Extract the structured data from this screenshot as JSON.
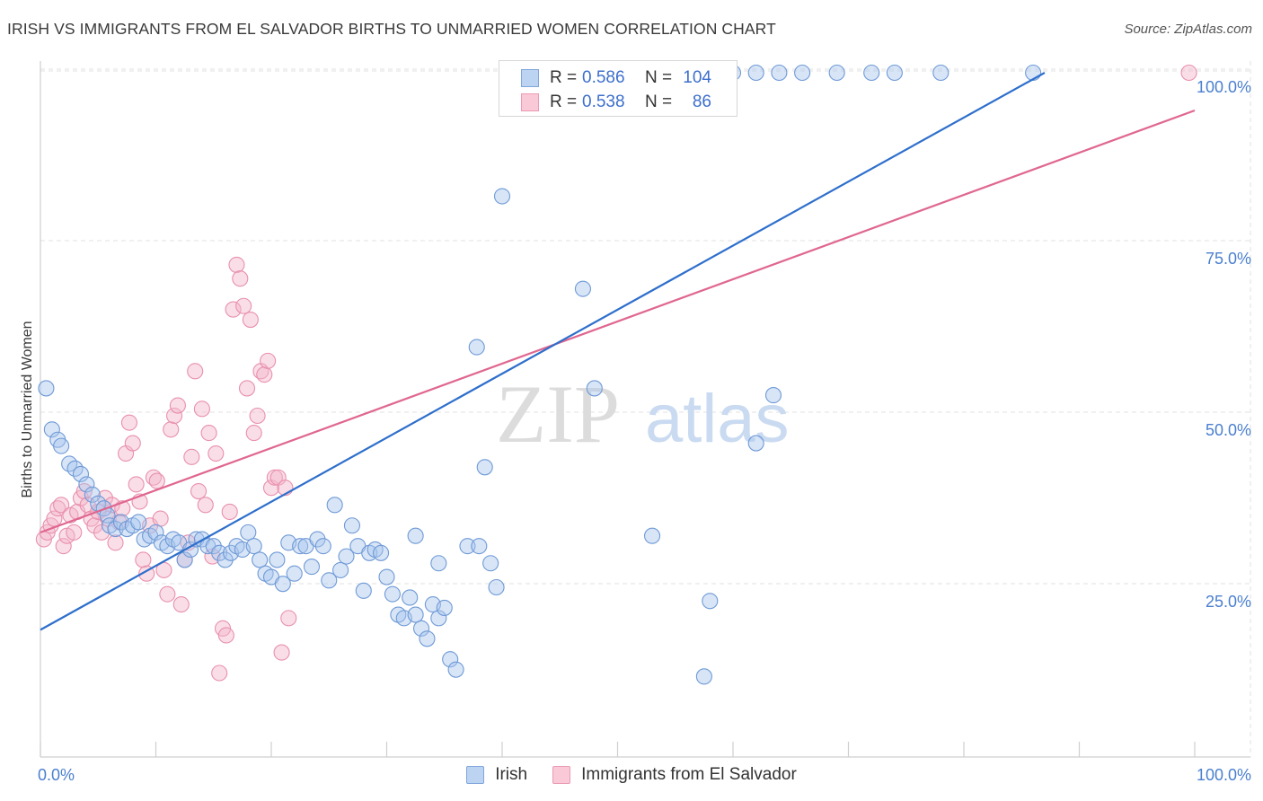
{
  "title": "IRISH VS IMMIGRANTS FROM EL SALVADOR BIRTHS TO UNMARRIED WOMEN CORRELATION CHART",
  "source": "Source: ZipAtlas.com",
  "watermark": {
    "zip": "ZIP",
    "atlas": "atlas"
  },
  "legend": {
    "irish": {
      "r_label": "R =",
      "r_value": "0.586",
      "n_label": "N =",
      "n_value": "104"
    },
    "salvador": {
      "r_label": "R =",
      "r_value": "0.538",
      "n_label": "N =",
      "n_value": "86"
    }
  },
  "bottom_legend": {
    "irish": "Irish",
    "salvador": "Immigrants from El Salvador"
  },
  "chart_data": {
    "type": "scatter",
    "title": "IRISH VS IMMIGRANTS FROM EL SALVADOR BIRTHS TO UNMARRIED WOMEN CORRELATION CHART",
    "xlabel": "",
    "ylabel": "Births to Unmarried Women",
    "xlim": [
      0,
      100
    ],
    "ylim": [
      0,
      105
    ],
    "x_tick_labels": [
      "0.0%",
      "100.0%"
    ],
    "y_tick_labels": [
      "25.0%",
      "50.0%",
      "75.0%",
      "100.0%"
    ],
    "y_ticks": [
      25,
      50,
      75,
      100
    ],
    "grid": true,
    "legend_position": "top-center",
    "colors": {
      "irish": "#a9c6ee",
      "irish_line": "#2e6fcc",
      "salvador": "#f5b6c9",
      "salvador_line": "#e0678f",
      "tick_text": "#4a7fcf"
    },
    "series": [
      {
        "name": "Irish",
        "trendline": {
          "x": [
            0,
            87
          ],
          "y": [
            18.8,
            100
          ]
        },
        "points": [
          [
            0.5,
            54
          ],
          [
            1,
            48
          ],
          [
            1.5,
            46.5
          ],
          [
            1.8,
            45.6
          ],
          [
            2.5,
            43
          ],
          [
            3,
            42.3
          ],
          [
            3.5,
            41.5
          ],
          [
            4,
            40
          ],
          [
            4.5,
            38.5
          ],
          [
            5,
            37.2
          ],
          [
            5.5,
            36.5
          ],
          [
            5.8,
            35.5
          ],
          [
            6,
            34
          ],
          [
            6.5,
            33.5
          ],
          [
            7,
            34.5
          ],
          [
            7.5,
            33.5
          ],
          [
            8,
            34
          ],
          [
            8.5,
            34.5
          ],
          [
            9,
            32
          ],
          [
            9.5,
            32.5
          ],
          [
            10,
            33
          ],
          [
            10.5,
            31.5
          ],
          [
            11,
            31
          ],
          [
            11.5,
            32
          ],
          [
            12,
            31.5
          ],
          [
            12.5,
            29
          ],
          [
            13,
            30.5
          ],
          [
            13.5,
            32
          ],
          [
            14,
            32
          ],
          [
            14.5,
            31
          ],
          [
            15,
            31
          ],
          [
            15.5,
            30
          ],
          [
            16,
            29
          ],
          [
            16.5,
            30
          ],
          [
            17,
            31
          ],
          [
            17.5,
            30.5
          ],
          [
            18,
            33
          ],
          [
            18.5,
            31
          ],
          [
            19,
            29
          ],
          [
            19.5,
            27
          ],
          [
            20,
            26.5
          ],
          [
            20.5,
            29
          ],
          [
            21,
            25.5
          ],
          [
            21.5,
            31.5
          ],
          [
            22,
            27
          ],
          [
            22.5,
            31
          ],
          [
            23,
            31
          ],
          [
            23.5,
            28
          ],
          [
            24,
            32
          ],
          [
            24.5,
            31
          ],
          [
            25,
            26
          ],
          [
            25.5,
            37
          ],
          [
            26,
            27.5
          ],
          [
            26.5,
            29.5
          ],
          [
            27,
            34
          ],
          [
            27.5,
            31
          ],
          [
            28,
            24.5
          ],
          [
            28.5,
            30
          ],
          [
            29,
            30.5
          ],
          [
            29.5,
            30
          ],
          [
            30,
            26.5
          ],
          [
            30.5,
            24
          ],
          [
            31,
            21
          ],
          [
            31.5,
            20.5
          ],
          [
            32,
            23.5
          ],
          [
            32.5,
            21
          ],
          [
            33,
            19
          ],
          [
            33.5,
            17.5
          ],
          [
            34,
            22.5
          ],
          [
            34.5,
            20.5
          ],
          [
            35,
            22
          ],
          [
            35.5,
            14.5
          ],
          [
            36,
            13
          ],
          [
            37,
            31
          ],
          [
            38,
            31
          ],
          [
            39,
            28.5
          ],
          [
            39.5,
            25
          ],
          [
            32.5,
            32.5
          ],
          [
            34.5,
            28.5
          ],
          [
            40,
            82
          ],
          [
            41,
            100
          ],
          [
            42.5,
            100
          ],
          [
            44.5,
            100
          ],
          [
            46,
            100
          ],
          [
            47,
            68.5
          ],
          [
            48,
            54
          ],
          [
            49,
            100
          ],
          [
            51,
            100
          ],
          [
            55,
            100
          ],
          [
            58,
            100
          ],
          [
            60,
            100
          ],
          [
            62,
            100
          ],
          [
            64,
            100
          ],
          [
            66,
            100
          ],
          [
            69,
            100
          ],
          [
            72,
            100
          ],
          [
            74,
            100
          ],
          [
            78,
            100
          ],
          [
            86,
            100
          ],
          [
            53,
            32.5
          ],
          [
            38.5,
            42.5
          ],
          [
            58,
            23
          ],
          [
            62,
            46
          ],
          [
            63.5,
            53
          ],
          [
            57.5,
            12
          ],
          [
            37.8,
            60
          ]
        ]
      },
      {
        "name": "Immigrants from El Salvador",
        "trendline": {
          "x": [
            0,
            100
          ],
          "y": [
            33,
            94.5
          ]
        },
        "points": [
          [
            0.3,
            32
          ],
          [
            0.6,
            33
          ],
          [
            0.9,
            34
          ],
          [
            1.2,
            35
          ],
          [
            1.5,
            36.5
          ],
          [
            1.8,
            37
          ],
          [
            2,
            31
          ],
          [
            2.3,
            32.5
          ],
          [
            2.6,
            35.5
          ],
          [
            2.9,
            33
          ],
          [
            3.2,
            36
          ],
          [
            3.5,
            38
          ],
          [
            3.8,
            39
          ],
          [
            4.1,
            37
          ],
          [
            4.4,
            35
          ],
          [
            4.7,
            34
          ],
          [
            5,
            36
          ],
          [
            5.3,
            33
          ],
          [
            5.6,
            38
          ],
          [
            5.9,
            35
          ],
          [
            6.2,
            37
          ],
          [
            6.5,
            31.5
          ],
          [
            6.8,
            34.5
          ],
          [
            7.1,
            36.5
          ],
          [
            7.4,
            44.5
          ],
          [
            7.7,
            49
          ],
          [
            8,
            46
          ],
          [
            8.3,
            40
          ],
          [
            8.6,
            37.5
          ],
          [
            8.9,
            29
          ],
          [
            9.2,
            27
          ],
          [
            9.5,
            34
          ],
          [
            9.8,
            41
          ],
          [
            10.1,
            40.5
          ],
          [
            10.4,
            35
          ],
          [
            10.7,
            27.5
          ],
          [
            11,
            24
          ],
          [
            11.3,
            48
          ],
          [
            11.6,
            50
          ],
          [
            11.9,
            51.5
          ],
          [
            12.2,
            22.5
          ],
          [
            12.5,
            29
          ],
          [
            12.8,
            31.5
          ],
          [
            13.1,
            44
          ],
          [
            13.4,
            56.5
          ],
          [
            13.7,
            39
          ],
          [
            14,
            51
          ],
          [
            14.3,
            37
          ],
          [
            14.6,
            47.5
          ],
          [
            14.9,
            29.5
          ],
          [
            15.2,
            44.5
          ],
          [
            15.5,
            12.5
          ],
          [
            15.8,
            19
          ],
          [
            16.1,
            18
          ],
          [
            16.4,
            36
          ],
          [
            16.7,
            65.5
          ],
          [
            17,
            72
          ],
          [
            17.3,
            70
          ],
          [
            17.6,
            66
          ],
          [
            17.9,
            54
          ],
          [
            18.2,
            64
          ],
          [
            18.5,
            47.5
          ],
          [
            18.8,
            50
          ],
          [
            19.1,
            56.5
          ],
          [
            19.4,
            56
          ],
          [
            19.7,
            58
          ],
          [
            20,
            39.5
          ],
          [
            20.3,
            41
          ],
          [
            20.6,
            41
          ],
          [
            20.9,
            15.5
          ],
          [
            21.2,
            39.5
          ],
          [
            21.5,
            20.5
          ],
          [
            99.5,
            100
          ]
        ]
      }
    ]
  }
}
